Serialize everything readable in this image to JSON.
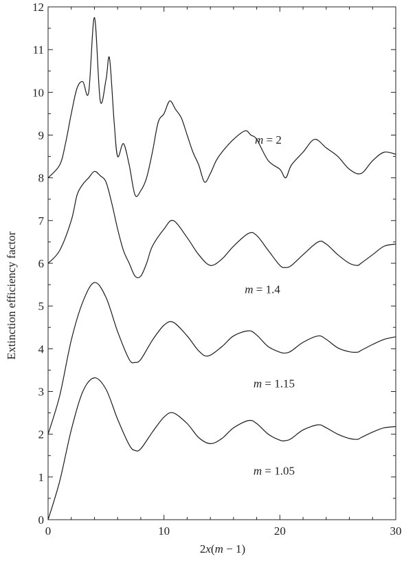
{
  "chart_data": {
    "type": "line",
    "title": "",
    "xlabel": "2x(m − 1)",
    "xlabel_parts": {
      "prefix": "2",
      "var": "x",
      "open": "(",
      "m": "m",
      "rest": " − 1)"
    },
    "ylabel": "Extinction efficiency factor",
    "xlim": [
      0,
      30
    ],
    "ylim": [
      0,
      12
    ],
    "xticks": [
      0,
      10,
      20,
      30
    ],
    "yticks": [
      0,
      1,
      2,
      3,
      4,
      5,
      6,
      7,
      8,
      9,
      10,
      11,
      12
    ],
    "grid": false,
    "legend": "none (series labelled directly on curves)",
    "line_color": "#1a1a1a",
    "series": [
      {
        "name": "m = 1.05",
        "label_var": "m",
        "label_value": " = 1.05",
        "offset": 0,
        "x": [
          0,
          1,
          2,
          3,
          4,
          5,
          6,
          7,
          7.5,
          8,
          9,
          10,
          10.8,
          12,
          13,
          14,
          15,
          16,
          17.3,
          18,
          19,
          20,
          20.5,
          21,
          22,
          23.3,
          24,
          25,
          26,
          26.7,
          27,
          28,
          29,
          30
        ],
        "y": [
          0,
          0.9,
          2.1,
          3.0,
          3.32,
          3.05,
          2.35,
          1.75,
          1.62,
          1.66,
          2.05,
          2.4,
          2.5,
          2.25,
          1.92,
          1.78,
          1.9,
          2.15,
          2.32,
          2.25,
          2.0,
          1.86,
          1.85,
          1.9,
          2.1,
          2.22,
          2.15,
          2.0,
          1.9,
          1.88,
          1.92,
          2.05,
          2.15,
          2.18
        ]
      },
      {
        "name": "m = 1.15",
        "label_var": "m",
        "label_value": " = 1.15",
        "offset": 2,
        "x": [
          0,
          1,
          2,
          3,
          4,
          5,
          6,
          7,
          7.5,
          8,
          9,
          10,
          10.8,
          12,
          13,
          13.8,
          15,
          16,
          17.3,
          18,
          19,
          20,
          20.5,
          21,
          22,
          23.3,
          24,
          25,
          26,
          26.7,
          27,
          28,
          29,
          30
        ],
        "y": [
          2.0,
          2.9,
          4.2,
          5.1,
          5.55,
          5.2,
          4.4,
          3.75,
          3.68,
          3.75,
          4.2,
          4.55,
          4.62,
          4.3,
          3.95,
          3.83,
          4.05,
          4.3,
          4.42,
          4.32,
          4.05,
          3.92,
          3.9,
          3.95,
          4.15,
          4.3,
          4.22,
          4.02,
          3.93,
          3.92,
          3.96,
          4.1,
          4.22,
          4.28
        ]
      },
      {
        "name": "m = 1.4",
        "label_var": "m",
        "label_value": " = 1.4",
        "offset": 4,
        "x": [
          0,
          1,
          2,
          2.5,
          3,
          3.5,
          4,
          4.5,
          5,
          5.5,
          6,
          6.5,
          7,
          7.5,
          8,
          8.5,
          9,
          10,
          10.8,
          12,
          13,
          14,
          15,
          16,
          17.3,
          18,
          19,
          20,
          20.5,
          21,
          22,
          23.3,
          24,
          25,
          26,
          26.7,
          27,
          28,
          29,
          30
        ],
        "y": [
          6.0,
          6.3,
          7.0,
          7.6,
          7.85,
          8.0,
          8.15,
          8.05,
          7.9,
          7.4,
          6.8,
          6.3,
          6.0,
          5.7,
          5.7,
          6.0,
          6.4,
          6.8,
          7.0,
          6.6,
          6.2,
          5.95,
          6.1,
          6.4,
          6.7,
          6.65,
          6.3,
          5.95,
          5.9,
          5.95,
          6.2,
          6.5,
          6.45,
          6.2,
          6.0,
          5.95,
          6.0,
          6.2,
          6.4,
          6.45
        ]
      },
      {
        "name": "m = 2",
        "label_var": "m",
        "label_value": " = 2",
        "offset": 6,
        "x": [
          0,
          1,
          1.5,
          2,
          2.5,
          3,
          3.5,
          4,
          4.5,
          5,
          5.3,
          5.7,
          6,
          6.5,
          7,
          7.5,
          8,
          8.5,
          9,
          9.5,
          10,
          10.5,
          11,
          11.5,
          12,
          12.5,
          13,
          13.5,
          14,
          14.5,
          15,
          16,
          17,
          17.5,
          18,
          19,
          20,
          20.5,
          21,
          22,
          23,
          24,
          25,
          26,
          27,
          28,
          29,
          30
        ],
        "y": [
          8.0,
          8.3,
          8.8,
          9.5,
          10.1,
          10.25,
          10.0,
          11.75,
          9.8,
          10.3,
          10.8,
          9.3,
          8.5,
          8.8,
          8.3,
          7.6,
          7.7,
          8.0,
          8.6,
          9.3,
          9.5,
          9.8,
          9.6,
          9.4,
          9.0,
          8.6,
          8.3,
          7.9,
          8.1,
          8.4,
          8.6,
          8.9,
          9.1,
          9.0,
          8.9,
          8.4,
          8.2,
          8.0,
          8.3,
          8.6,
          8.9,
          8.7,
          8.5,
          8.2,
          8.1,
          8.4,
          8.6,
          8.55
        ]
      }
    ]
  }
}
